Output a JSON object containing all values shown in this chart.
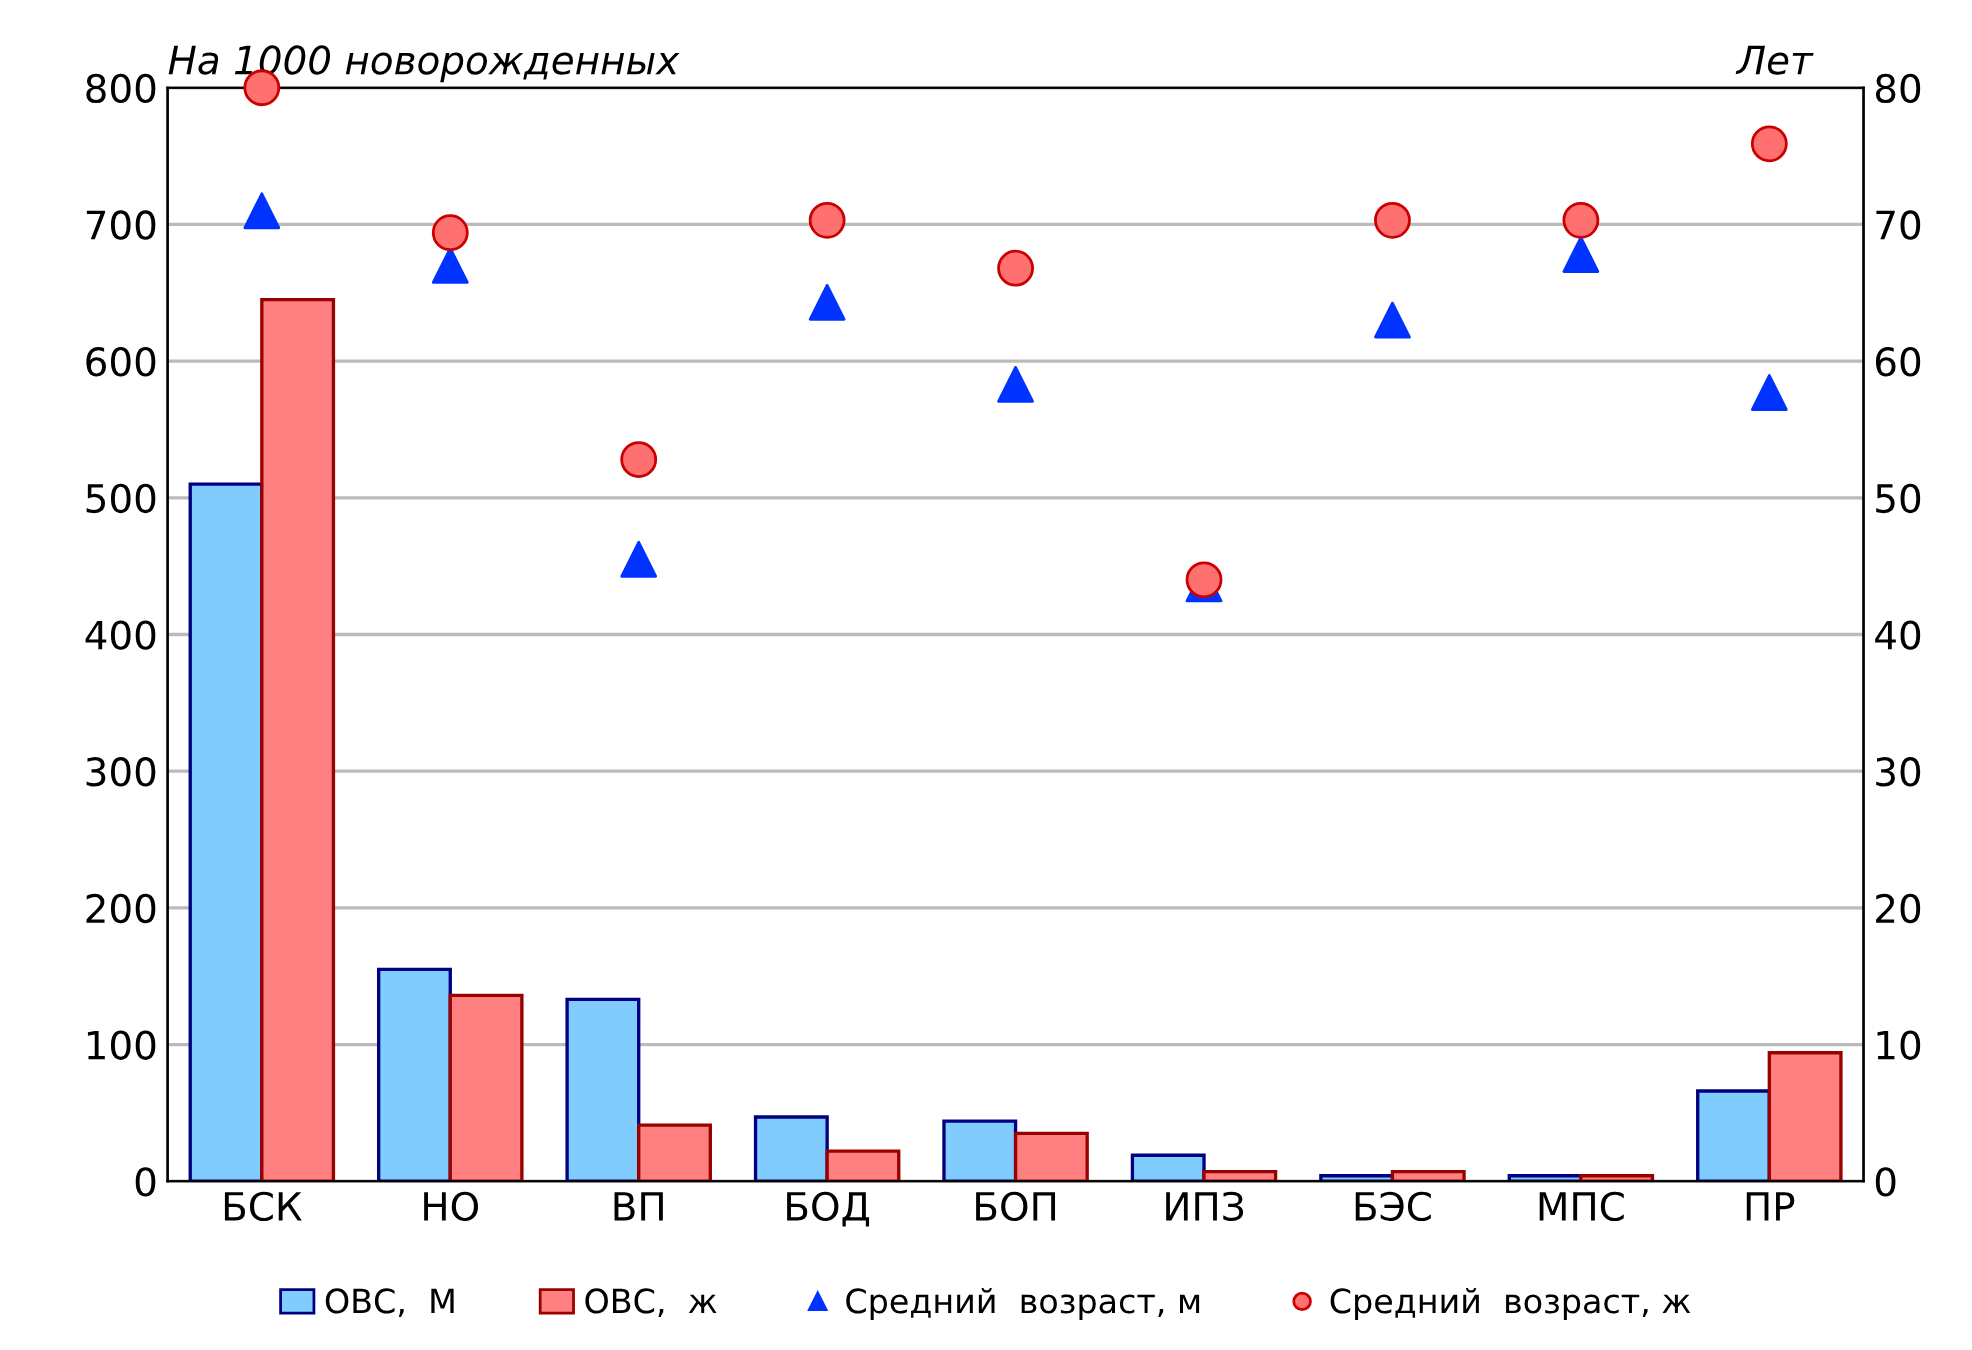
{
  "chart_data": {
    "type": "bar",
    "ylabel": "На 1000 новорожденных",
    "y2label": "Лет",
    "categories": [
      "БСК",
      "НО",
      "ВП",
      "БОД",
      "БОП",
      "ИПЗ",
      "БЭС",
      "МПС",
      "ПР"
    ],
    "series": [
      {
        "name": "ОВС,  М",
        "color": "#80ccff",
        "values": [
          510,
          155,
          133,
          47,
          44,
          19,
          4,
          4,
          66
        ]
      },
      {
        "name": "ОВС,  ж",
        "color": "#ff8080",
        "values": [
          645,
          136,
          41,
          22,
          35,
          7,
          7,
          4,
          94
        ]
      },
      {
        "name": "Средний  возраст, м",
        "type": "scatter",
        "axis": "y2",
        "marker": "triangle",
        "color": "#0033ff",
        "values": [
          71,
          67,
          45.5,
          64.3,
          58.3,
          43.7,
          63,
          67.8,
          57.7
        ]
      },
      {
        "name": "Средний  возраст, ж",
        "type": "scatter",
        "axis": "y2",
        "marker": "circle",
        "color": "#ff7070",
        "values": [
          80,
          69.4,
          52.8,
          70.3,
          66.8,
          44,
          70.3,
          70.3,
          75.9
        ]
      }
    ],
    "ylim": [
      0,
      800
    ],
    "yticks": [
      0,
      100,
      200,
      300,
      400,
      500,
      600,
      700,
      800
    ],
    "y2lim": [
      0,
      80
    ],
    "y2ticks": [
      0,
      10,
      20,
      30,
      40,
      50,
      60,
      70,
      80
    ],
    "grid": "y",
    "legend": "bottom"
  }
}
